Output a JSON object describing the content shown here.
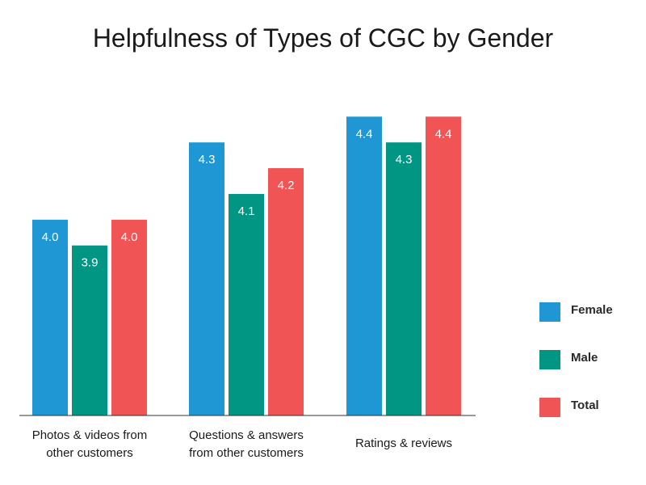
{
  "chart_data": {
    "type": "bar",
    "title": "Helpfulness of Types of CGC by Gender",
    "xlabel": "",
    "ylabel": "",
    "categories": [
      [
        "Photos & videos from",
        "other customers"
      ],
      [
        "Questions & answers",
        "from other customers"
      ],
      [
        "Ratings & reviews"
      ]
    ],
    "series": [
      {
        "name": "Female",
        "color": "#1f97d4",
        "values": [
          4.0,
          4.3,
          4.4
        ],
        "labels": [
          "4.0",
          "4.3",
          "4.4"
        ]
      },
      {
        "name": "Male",
        "color": "#009683",
        "values": [
          3.9,
          4.1,
          4.3
        ],
        "labels": [
          "3.9",
          "4.1",
          "4.3"
        ]
      },
      {
        "name": "Total",
        "color": "#f05454",
        "values": [
          4.0,
          4.2,
          4.4
        ],
        "labels": [
          "4.0",
          "4.2",
          "4.4"
        ]
      }
    ],
    "ylim": [
      3.24,
      4.47
    ],
    "grid": false,
    "legend_position": "right"
  }
}
